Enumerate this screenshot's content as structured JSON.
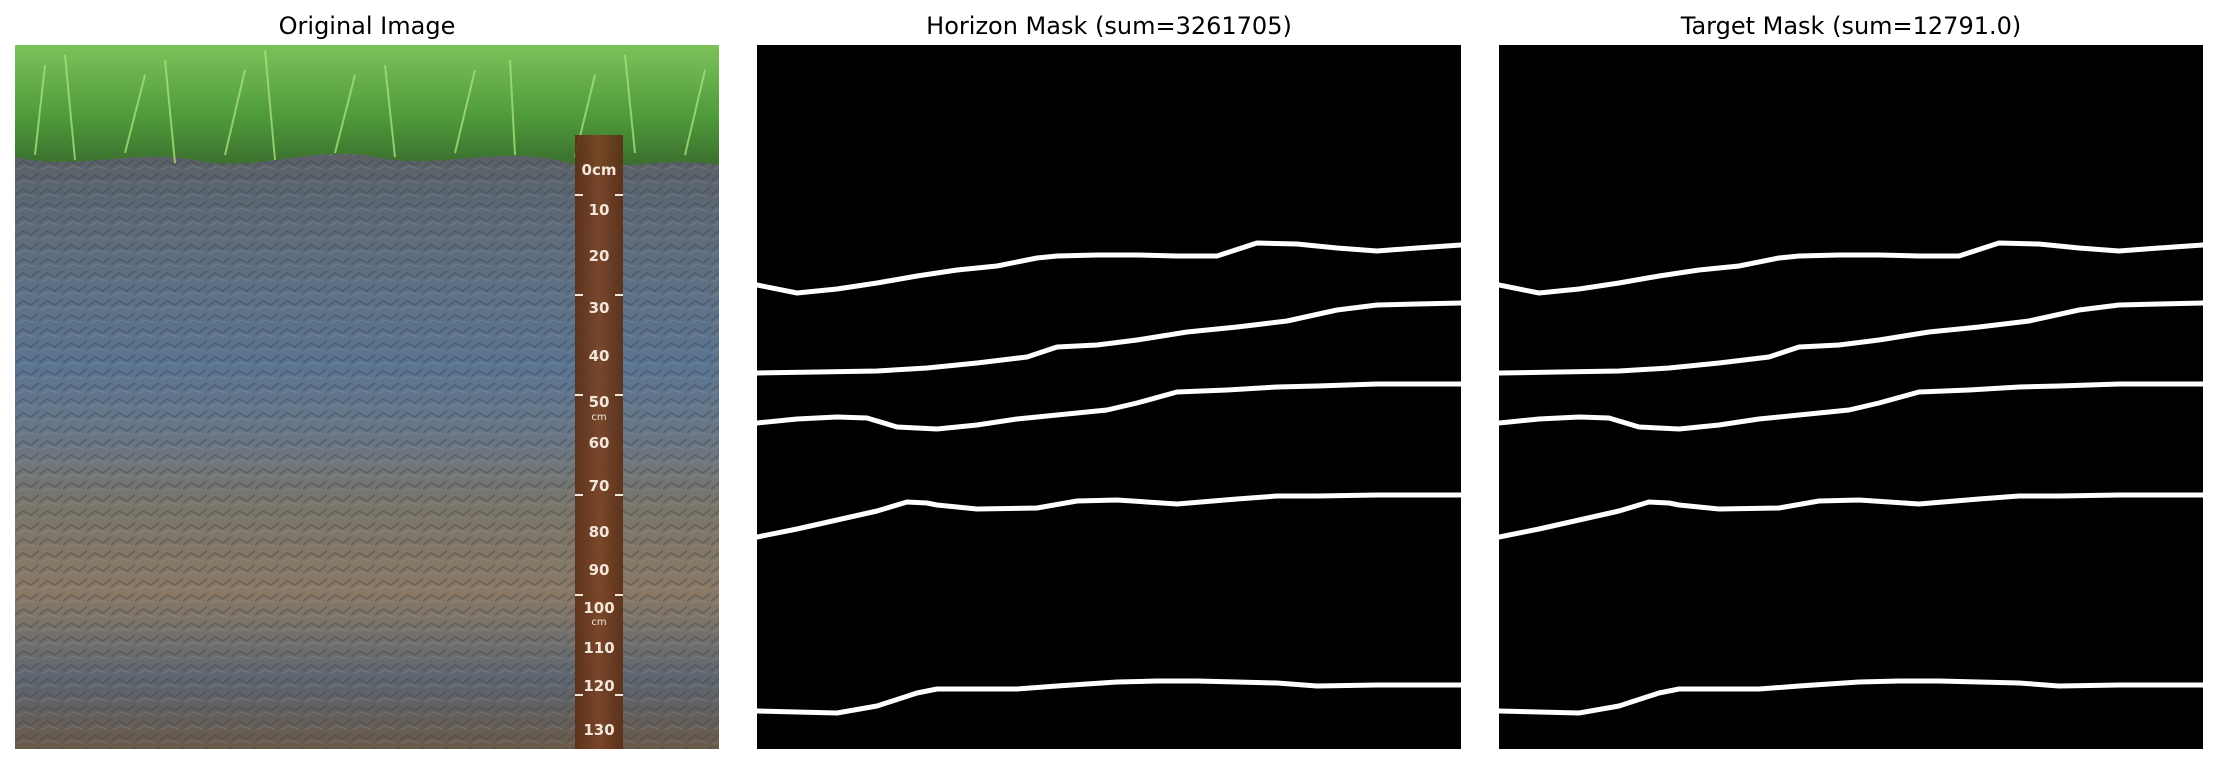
{
  "panels": [
    {
      "title": "Original Image"
    },
    {
      "title": "Horizon Mask (sum=3261705)"
    },
    {
      "title": "Target Mask (sum=12791.0)"
    }
  ],
  "photo": {
    "ruler": {
      "unit_label": "0cm",
      "ticks": [
        "10",
        "20",
        "30",
        "40",
        "50",
        "60",
        "70",
        "80",
        "90",
        "100",
        "110",
        "120",
        "130"
      ],
      "cm_marks": [
        "cm",
        "cm"
      ]
    },
    "colors": {
      "grass": "#4e9a3a",
      "topsoil": "#5a5652",
      "blue_gray": "#556a80",
      "subsoil": "#8a7a66",
      "ruler": "#6e3a1e"
    }
  },
  "horizon_lines": [
    [
      [
        0,
        240
      ],
      [
        40,
        248
      ],
      [
        80,
        244
      ],
      [
        120,
        238
      ],
      [
        160,
        231
      ],
      [
        200,
        225
      ],
      [
        240,
        221
      ],
      [
        280,
        213
      ],
      [
        300,
        211
      ],
      [
        340,
        210
      ],
      [
        380,
        210
      ],
      [
        420,
        211
      ],
      [
        460,
        211
      ],
      [
        500,
        198
      ],
      [
        540,
        199
      ],
      [
        580,
        203
      ],
      [
        620,
        206
      ],
      [
        660,
        203
      ],
      [
        704,
        200
      ]
    ],
    [
      [
        0,
        328
      ],
      [
        60,
        327
      ],
      [
        120,
        326
      ],
      [
        170,
        323
      ],
      [
        220,
        318
      ],
      [
        270,
        312
      ],
      [
        300,
        302
      ],
      [
        340,
        300
      ],
      [
        380,
        295
      ],
      [
        430,
        287
      ],
      [
        480,
        282
      ],
      [
        530,
        276
      ],
      [
        580,
        265
      ],
      [
        620,
        260
      ],
      [
        660,
        259
      ],
      [
        704,
        258
      ]
    ],
    [
      [
        0,
        378
      ],
      [
        40,
        374
      ],
      [
        80,
        372
      ],
      [
        110,
        373
      ],
      [
        140,
        382
      ],
      [
        180,
        384
      ],
      [
        220,
        380
      ],
      [
        260,
        374
      ],
      [
        300,
        370
      ],
      [
        350,
        365
      ],
      [
        380,
        358
      ],
      [
        420,
        347
      ],
      [
        470,
        345
      ],
      [
        520,
        342
      ],
      [
        560,
        341
      ],
      [
        620,
        339
      ],
      [
        704,
        339
      ]
    ],
    [
      [
        0,
        492
      ],
      [
        40,
        484
      ],
      [
        80,
        475
      ],
      [
        120,
        466
      ],
      [
        150,
        457
      ],
      [
        170,
        458
      ],
      [
        180,
        460
      ],
      [
        220,
        464
      ],
      [
        280,
        463
      ],
      [
        320,
        456
      ],
      [
        360,
        455
      ],
      [
        420,
        459
      ],
      [
        480,
        454
      ],
      [
        520,
        451
      ],
      [
        560,
        451
      ],
      [
        620,
        450
      ],
      [
        704,
        450
      ]
    ],
    [
      [
        0,
        666
      ],
      [
        40,
        667
      ],
      [
        80,
        668
      ],
      [
        120,
        661
      ],
      [
        160,
        648
      ],
      [
        180,
        644
      ],
      [
        220,
        644
      ],
      [
        260,
        644
      ],
      [
        300,
        641
      ],
      [
        360,
        637
      ],
      [
        400,
        636
      ],
      [
        440,
        636
      ],
      [
        480,
        637
      ],
      [
        520,
        638
      ],
      [
        560,
        641
      ],
      [
        620,
        640
      ],
      [
        704,
        640
      ]
    ]
  ]
}
